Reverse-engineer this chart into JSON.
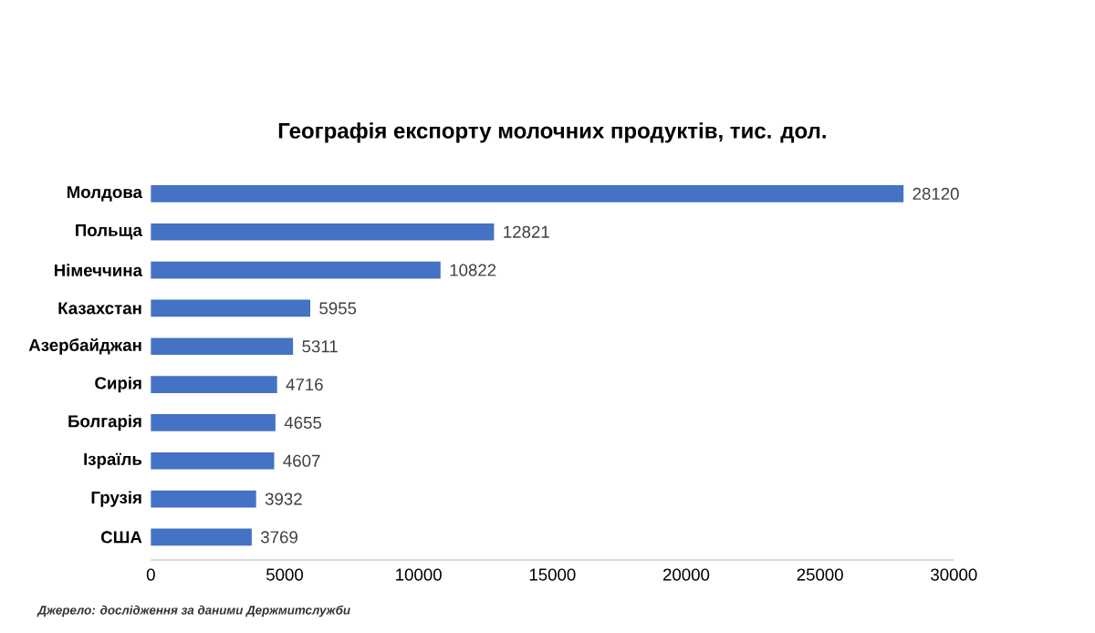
{
  "chart_data": {
    "type": "bar",
    "orientation": "horizontal",
    "title": "Географія експорту молочних продуктів, тис. дол.",
    "categories": [
      "Молдова",
      "Польща",
      "Німеччина",
      "Казахстан",
      "Азербайджан",
      "Сирія",
      "Болгарія",
      "Ізраїль",
      "Грузія",
      "США"
    ],
    "values": [
      28120,
      12821,
      10822,
      5955,
      5311,
      4716,
      4655,
      4607,
      3932,
      3769
    ],
    "color": "#4472c4",
    "data_labels": true,
    "xlim": [
      0,
      30000
    ],
    "xticks": [
      0,
      5000,
      10000,
      15000,
      20000,
      25000,
      30000
    ],
    "annotations": [
      "Джерело: дослідження за даними Держмитслужби"
    ]
  }
}
